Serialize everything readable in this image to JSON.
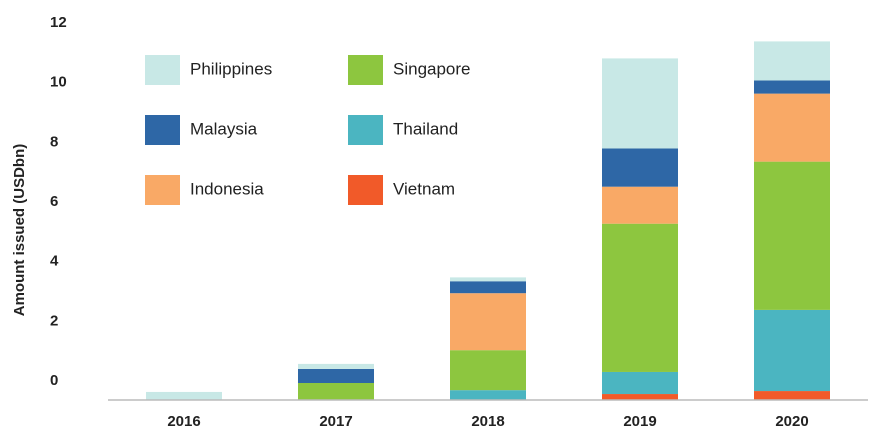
{
  "chart_data": {
    "type": "stacked_bar",
    "y_label": "Amount issued (USDbn)",
    "categories": [
      "2016",
      "2017",
      "2018",
      "2019",
      "2020"
    ],
    "series": [
      {
        "name": "Vietnam",
        "color": "#f15a29",
        "values": [
          0,
          0,
          0,
          0.2,
          0.3
        ]
      },
      {
        "name": "Thailand",
        "color": "#4bb5c1",
        "values": [
          0,
          0,
          0.33,
          0.74,
          2.72
        ]
      },
      {
        "name": "Singapore",
        "color": "#8dc63f",
        "values": [
          0,
          0.57,
          1.34,
          4.97,
          4.97
        ]
      },
      {
        "name": "Indonesia",
        "color": "#f9a966",
        "values": [
          0,
          0,
          1.91,
          1.24,
          2.28
        ]
      },
      {
        "name": "Malaysia",
        "color": "#2e67a6",
        "values": [
          0,
          0.47,
          0.4,
          1.28,
          0.44
        ]
      },
      {
        "name": "Philippines",
        "color": "#c8e8e6",
        "values": [
          0.27,
          0.17,
          0.13,
          3.02,
          1.31
        ]
      }
    ],
    "ylim": [
      0,
      12
    ],
    "yticks": [
      0,
      2,
      4,
      6,
      8,
      10,
      12
    ],
    "grid": false,
    "legend_order": [
      5,
      2,
      4,
      1,
      3,
      0
    ]
  }
}
